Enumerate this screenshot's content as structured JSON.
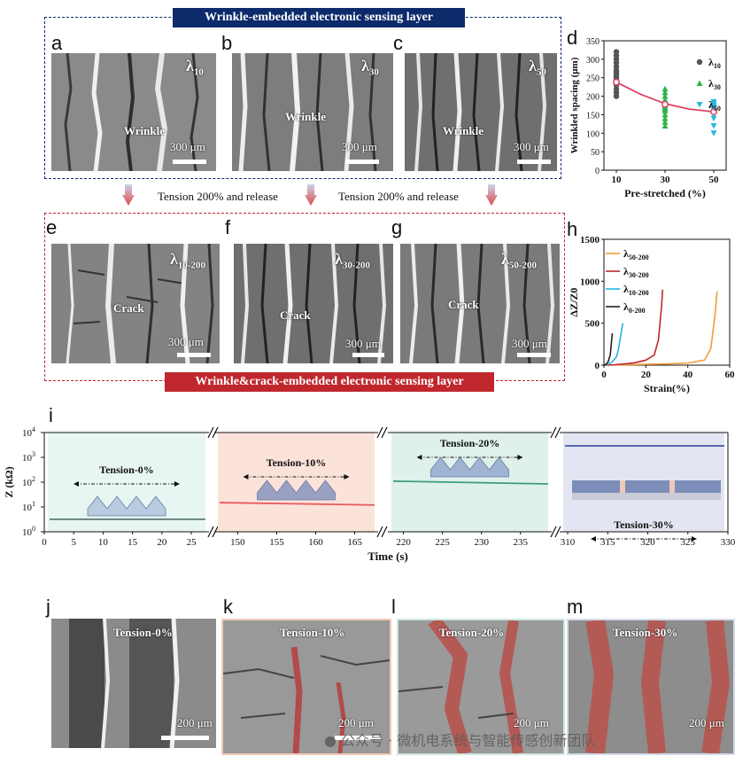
{
  "top_banner": "Wrinkle-embedded electronic sensing layer",
  "bottom_banner": "Wrinkle&crack-embedded electronic sensing layer",
  "colors": {
    "navy": "#0d2a6b",
    "dark_red": "#c0272d",
    "d_lambda10": "#555555",
    "d_lambda30": "#2fb34a",
    "d_lambda50": "#27b6e0",
    "d_fit": "#d9455f",
    "h_50": "#f39a3b",
    "h_30": "#c0272d",
    "h_10": "#27b6e0",
    "h_0": "#222222",
    "i_bg1": "#e8f6f3",
    "i_bg2": "#fbe3da",
    "i_bg3": "#dff1ea",
    "i_bg4": "#e3e6f2"
  },
  "panels": {
    "a": {
      "label": "a",
      "lambda": "λ",
      "sub": "10",
      "note": "Wrinkle",
      "scale": "300 μm"
    },
    "b": {
      "label": "b",
      "lambda": "λ",
      "sub": "30",
      "note": "Wrinkle",
      "scale": "300 μm"
    },
    "c": {
      "label": "c",
      "lambda": "λ",
      "sub": "50",
      "note": "Wrinkle",
      "scale": "300 μm"
    },
    "e": {
      "label": "e",
      "lambda": "λ",
      "sub": "10-200",
      "note": "Crack",
      "scale": "300 μm"
    },
    "f": {
      "label": "f",
      "lambda": "λ",
      "sub": "30-200",
      "note": "Crack",
      "scale": "300 μm"
    },
    "g": {
      "label": "g",
      "lambda": "λ",
      "sub": "50-200",
      "note": "Crack",
      "scale": "300 μm"
    },
    "j": {
      "label": "j",
      "note": "Tension-0%",
      "scale": "200 μm"
    },
    "k": {
      "label": "k",
      "note": "Tension-10%",
      "scale": "200 μm"
    },
    "l": {
      "label": "l",
      "note": "Tension-20%",
      "scale": "200 μm"
    },
    "m": {
      "label": "m",
      "note": "Tension-30%",
      "scale": "200 μm"
    }
  },
  "arrows_text": [
    "Tension 200% and release",
    "Tension 200% and release"
  ],
  "watermark": "公众号 · 微机电系统与智能传感创新团队",
  "chart_data": [
    {
      "panel": "d",
      "type": "scatter",
      "xlabel": "Pre-stretched (%)",
      "ylabel": "Wrinkled spacing (μm)",
      "xticks": [
        10,
        30,
        50
      ],
      "ylim": [
        0,
        350
      ],
      "yticks": [
        0,
        50,
        100,
        150,
        200,
        250,
        300,
        350
      ],
      "series": [
        {
          "name": "λ10",
          "x": 10,
          "values": [
            200,
            210,
            220,
            230,
            240,
            245,
            250,
            255,
            260,
            265,
            270,
            280,
            290,
            300,
            310,
            320
          ]
        },
        {
          "name": "λ30",
          "x": 30,
          "values": [
            120,
            130,
            140,
            150,
            160,
            165,
            170,
            175,
            180,
            185,
            190,
            200,
            210,
            220
          ]
        },
        {
          "name": "λ50",
          "x": 50,
          "values": [
            100,
            120,
            140,
            150,
            160,
            165,
            170,
            175,
            180,
            185
          ]
        }
      ],
      "fit": {
        "x": [
          10,
          20,
          30,
          40,
          50
        ],
        "y": [
          238,
          205,
          180,
          165,
          158
        ]
      },
      "means": {
        "x": [
          10,
          30,
          50
        ],
        "y": [
          238,
          178,
          158
        ]
      }
    },
    {
      "panel": "h",
      "type": "line",
      "xlabel": "Strain(%)",
      "ylabel": "ΔZ/Z0",
      "xlim": [
        0,
        60
      ],
      "xticks": [
        0,
        20,
        40,
        60
      ],
      "ylim": [
        0,
        1500
      ],
      "yticks": [
        0,
        500,
        1000,
        1500
      ],
      "series": [
        {
          "name": "λ50-200",
          "x": [
            0,
            10,
            20,
            30,
            40,
            48,
            51,
            53,
            54
          ],
          "y": [
            0,
            5,
            10,
            15,
            25,
            60,
            200,
            600,
            880
          ]
        },
        {
          "name": "λ30-200",
          "x": [
            0,
            5,
            10,
            15,
            20,
            24,
            26,
            27.5,
            28
          ],
          "y": [
            0,
            5,
            15,
            30,
            60,
            120,
            300,
            700,
            900
          ]
        },
        {
          "name": "λ10-200",
          "x": [
            0,
            2,
            4,
            6,
            7,
            8,
            9
          ],
          "y": [
            0,
            10,
            40,
            100,
            200,
            350,
            500
          ]
        },
        {
          "name": "λ0-200",
          "x": [
            0,
            1,
            2,
            3,
            3.5,
            4
          ],
          "y": [
            0,
            10,
            40,
            120,
            250,
            380
          ]
        }
      ]
    },
    {
      "panel": "i",
      "type": "line",
      "xlabel": "Time (s)",
      "ylabel": "Z (kΩ)",
      "ylim_log10": [
        0,
        4
      ],
      "yticks": [
        "10^0",
        "10^1",
        "10^2",
        "10^3",
        "10^4"
      ],
      "segments": [
        {
          "label": "Tension-0%",
          "xticks": [
            0,
            5,
            10,
            15,
            20,
            25
          ],
          "xrange": [
            0,
            28
          ],
          "y": [
            3.2,
            3.2
          ]
        },
        {
          "label": "Tension-10%",
          "xticks": [
            150,
            155,
            160,
            165
          ],
          "xrange": [
            147,
            168
          ],
          "y": [
            15,
            12
          ]
        },
        {
          "label": "Tension-20%",
          "xticks": [
            220,
            225,
            230,
            235
          ],
          "xrange": [
            218,
            239
          ],
          "y": [
            110,
            85
          ]
        },
        {
          "label": "Tension-30%",
          "xticks": [
            310,
            315,
            320,
            325,
            330
          ],
          "xrange": [
            309,
            330
          ],
          "y": [
            2900,
            2900
          ]
        }
      ]
    }
  ]
}
